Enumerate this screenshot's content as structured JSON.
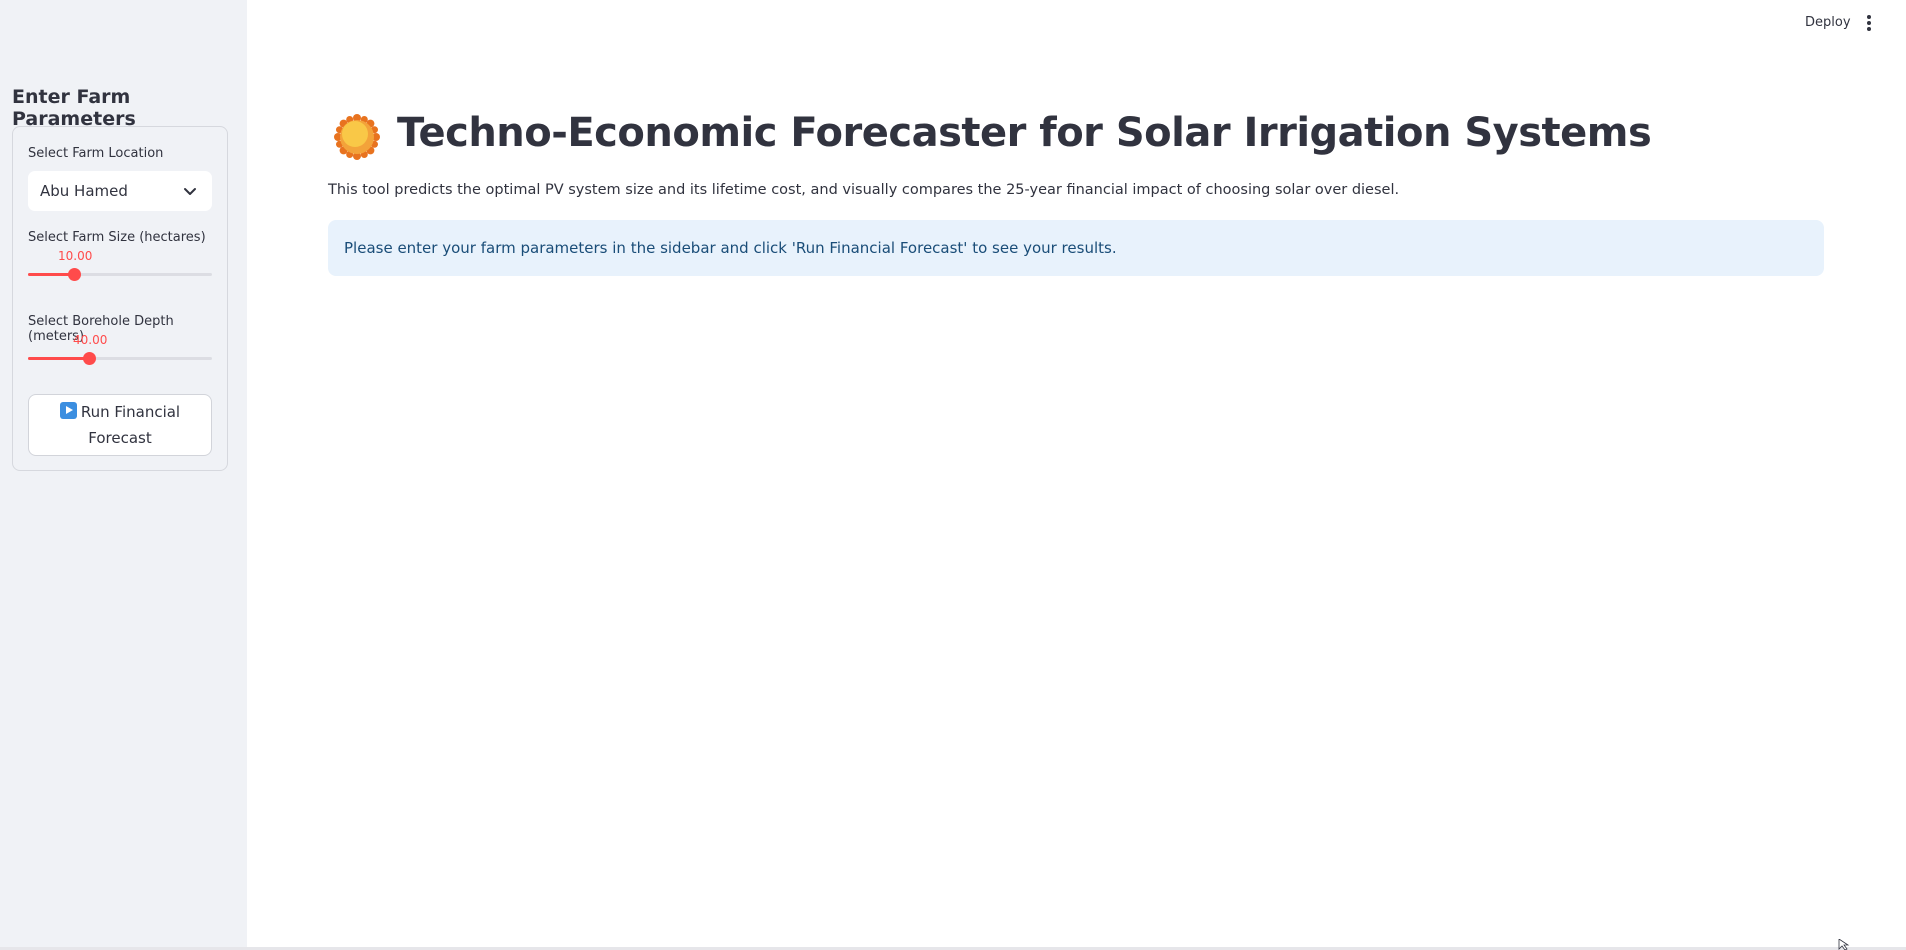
{
  "header": {
    "deploy_label": "Deploy",
    "menu_icon": "vertical-dots-icon"
  },
  "sidebar": {
    "title": "Enter Farm Parameters",
    "location": {
      "label": "Select Farm Location",
      "selected": "Abu Hamed"
    },
    "farm_size": {
      "label": "Select Farm Size (hectares)",
      "value_text": "10.00",
      "fraction": 0.25
    },
    "borehole_depth": {
      "label": "Select Borehole Depth (meters)",
      "value_text": "40.00",
      "fraction": 0.33
    },
    "run_button": {
      "icon": "play-button-icon",
      "label_line1": "Run Financial",
      "label_line2": "Forecast"
    }
  },
  "main": {
    "title_icon": "sun-icon",
    "title": "Techno-Economic Forecaster for Solar Irrigation Systems",
    "description": "This tool predicts the optimal PV system size and its lifetime cost, and visually compares the 25-year financial impact of choosing solar over diesel.",
    "info_message": "Please enter your farm parameters in the sidebar and click 'Run Financial Forecast' to see your results."
  },
  "colors": {
    "accent": "#ff4b4b",
    "sidebar_bg": "#f0f2f6",
    "info_bg": "#e8f2fc",
    "info_text": "#1a4d78"
  }
}
